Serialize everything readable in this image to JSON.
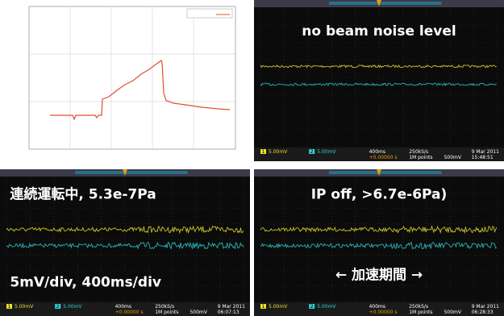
{
  "scopes": [
    {
      "annotations": [
        "no beam noise level"
      ],
      "status": {
        "ch1_badge": "1",
        "ch1": "5.00mV",
        "ch2_badge": "2",
        "ch2": "5.00mV",
        "timebase": "400ms",
        "trigger_pos": "+0.00000 s",
        "sample_rate": "250kS/s",
        "points": "1M points",
        "trigger_level": "500mV",
        "date": "9 Mar 2011",
        "time": "15:48:51"
      }
    },
    {
      "annotations": [
        "連続運転中, 5.3e-7Pa",
        "5mV/div, 400ms/div"
      ],
      "status": {
        "ch1_badge": "1",
        "ch1": "5.00mV",
        "ch2_badge": "2",
        "ch2": "5.00mV",
        "timebase": "400ms",
        "trigger_pos": "+0.00000 s",
        "sample_rate": "250kS/s",
        "points": "1M points",
        "trigger_level": "500mV",
        "date": "9 Mar 2011",
        "time": "06:07:13"
      }
    },
    {
      "annotations": [
        "IP off, >6.7e-6Pa)",
        "← 加速期間 →"
      ],
      "status": {
        "ch1_badge": "1",
        "ch1": "5.00mV",
        "ch2_badge": "2",
        "ch2": "5.00mV",
        "timebase": "400ms",
        "trigger_pos": "+0.00000 s",
        "sample_rate": "250kS/s",
        "points": "1M points",
        "trigger_level": "500mV",
        "date": "9 Mar 2011",
        "time": "06:28:33"
      }
    }
  ]
}
